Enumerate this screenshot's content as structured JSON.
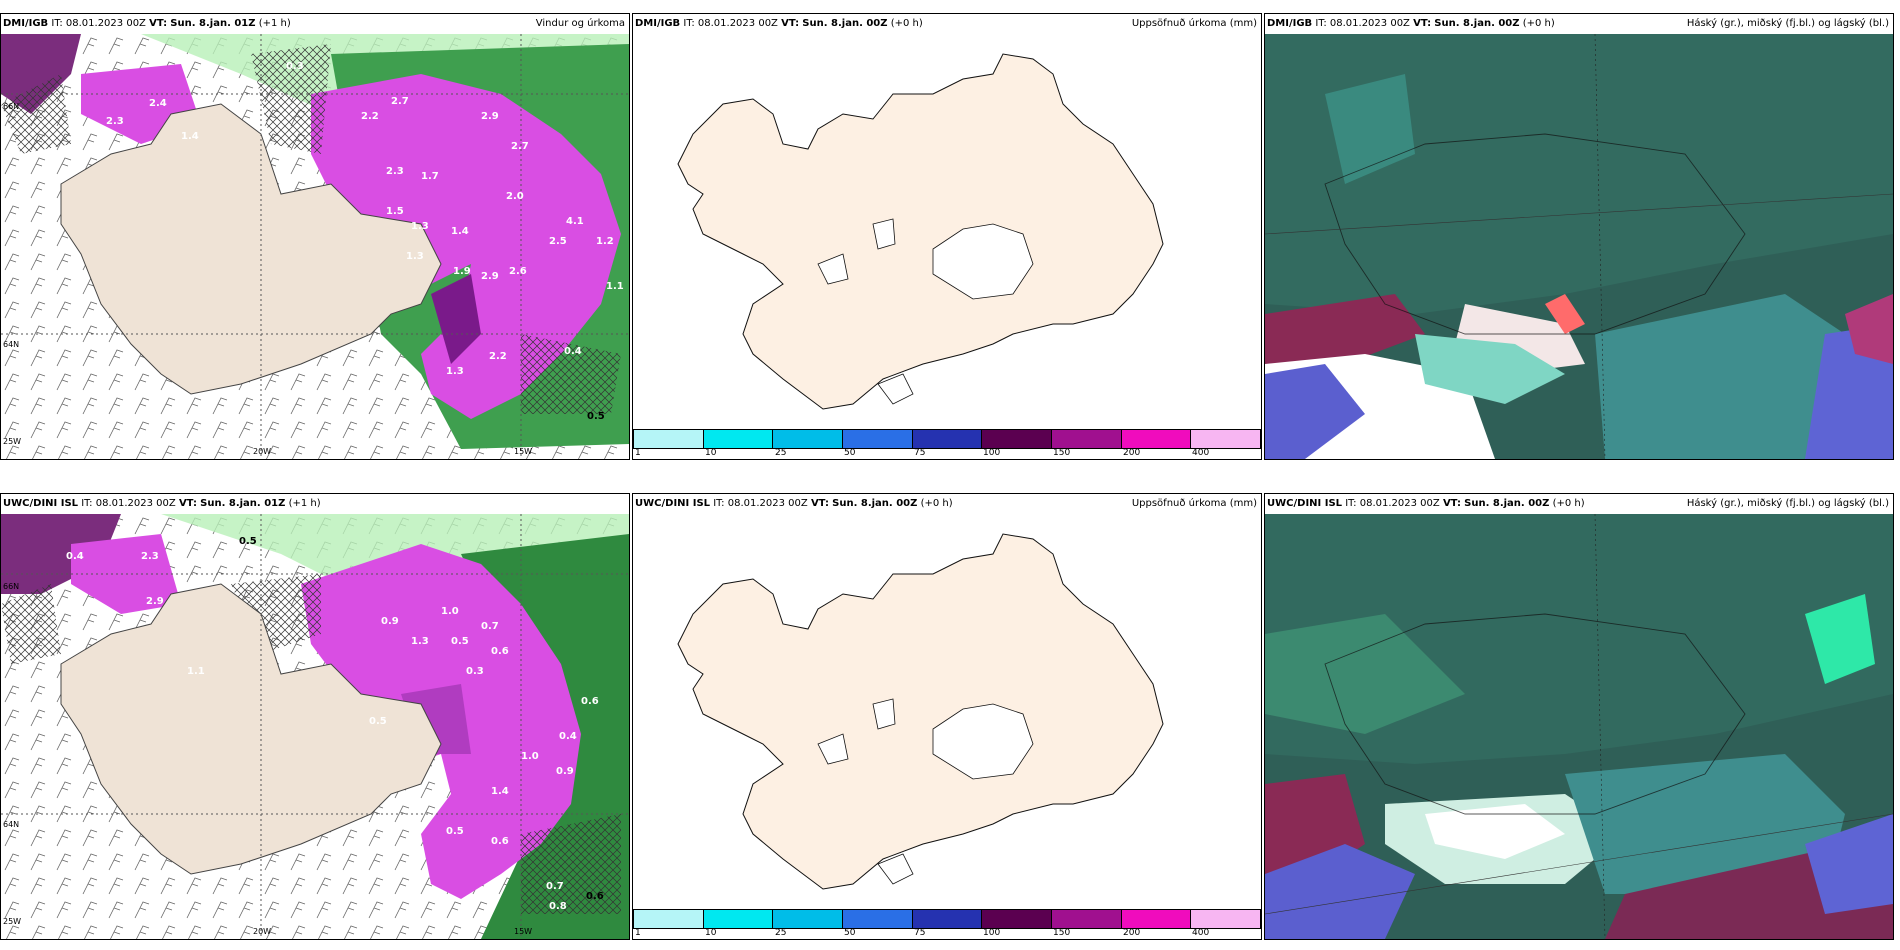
{
  "panels": [
    {
      "model": "DMI/IGB",
      "it_label": "IT:",
      "it": "08.01.2023 00Z",
      "vt_label": "VT:",
      "vt": "Sun. 8.jan. 01Z",
      "lead": "(+1 h)",
      "title": "Vindur og úrkoma"
    },
    {
      "model": "DMI/IGB",
      "it_label": "IT:",
      "it": "08.01.2023 00Z",
      "vt_label": "VT:",
      "vt": "Sun. 8.jan. 00Z",
      "lead": "(+0 h)",
      "title": "Uppsöfnuð úrkoma (mm)"
    },
    {
      "model": "DMI/IGB",
      "it_label": "IT:",
      "it": "08.01.2023 00Z",
      "vt_label": "VT:",
      "vt": "Sun. 8.jan. 00Z",
      "lead": "(+0 h)",
      "title": "Háský (gr.), miðský (fj.bl.) og lágský (bl.)"
    },
    {
      "model": "UWC/DINI ISL",
      "it_label": "IT:",
      "it": "08.01.2023 00Z",
      "vt_label": "VT:",
      "vt": "Sun. 8.jan. 01Z",
      "lead": "(+1 h)",
      "title": ""
    },
    {
      "model": "UWC/DINI ISL",
      "it_label": "IT:",
      "it": "08.01.2023 00Z",
      "vt_label": "VT:",
      "vt": "Sun. 8.jan. 00Z",
      "lead": "(+0 h)",
      "title": "Uppsöfnuð úrkoma (mm)"
    },
    {
      "model": "UWC/DINI ISL",
      "it_label": "IT:",
      "it": "08.01.2023 00Z",
      "vt_label": "VT:",
      "vt": "Sun. 8.jan. 00Z",
      "lead": "(+0 h)",
      "title": "Háský (gr.), miðský (fj.bl.) og lágský (bl.)"
    }
  ],
  "grid_labels": {
    "lon1": "20W",
    "lon2": "15W",
    "lat1": "66N",
    "lat2": "64N",
    "lon_left": "25W"
  },
  "precip_scale": {
    "ticks": [
      "1",
      "10",
      "25",
      "50",
      "75",
      "100",
      "150",
      "200",
      "400"
    ],
    "colors": [
      "#b5f5f7",
      "#00e8f0",
      "#00bde8",
      "#2a6fe6",
      "#2532b0",
      "#5b0050",
      "#a0108f",
      "#f00cbd",
      "#f7b6f2"
    ]
  },
  "precip_labels_top": [
    "0.3",
    "2.4",
    "2.3",
    "1.4",
    "2.2",
    "2.7",
    "2.9",
    "2.3",
    "1.7",
    "2.7",
    "1.5",
    "1.3",
    "1.4",
    "2.0",
    "4.1",
    "1.2",
    "1.3",
    "1.9",
    "2.9",
    "2.6",
    "2.5",
    "1.1",
    "0.4",
    "2.2",
    "1.3",
    "0.5"
  ],
  "precip_labels_bottom": [
    "0.4",
    "0.5",
    "2.3",
    "2.9",
    "1.1",
    "0.9",
    "1.3",
    "1.0",
    "0.5",
    "0.7",
    "0.6",
    "0.3",
    "1.4",
    "1.0",
    "0.9",
    "0.6",
    "0.4",
    "0.5",
    "0.6",
    "0.7",
    "0.8",
    "0.6",
    "0.5"
  ],
  "colors": {
    "land": "#efe3d6",
    "magenta": "#d94ee3",
    "green": "#6fcf6f",
    "cloud_teal": "#2f6b5f"
  }
}
